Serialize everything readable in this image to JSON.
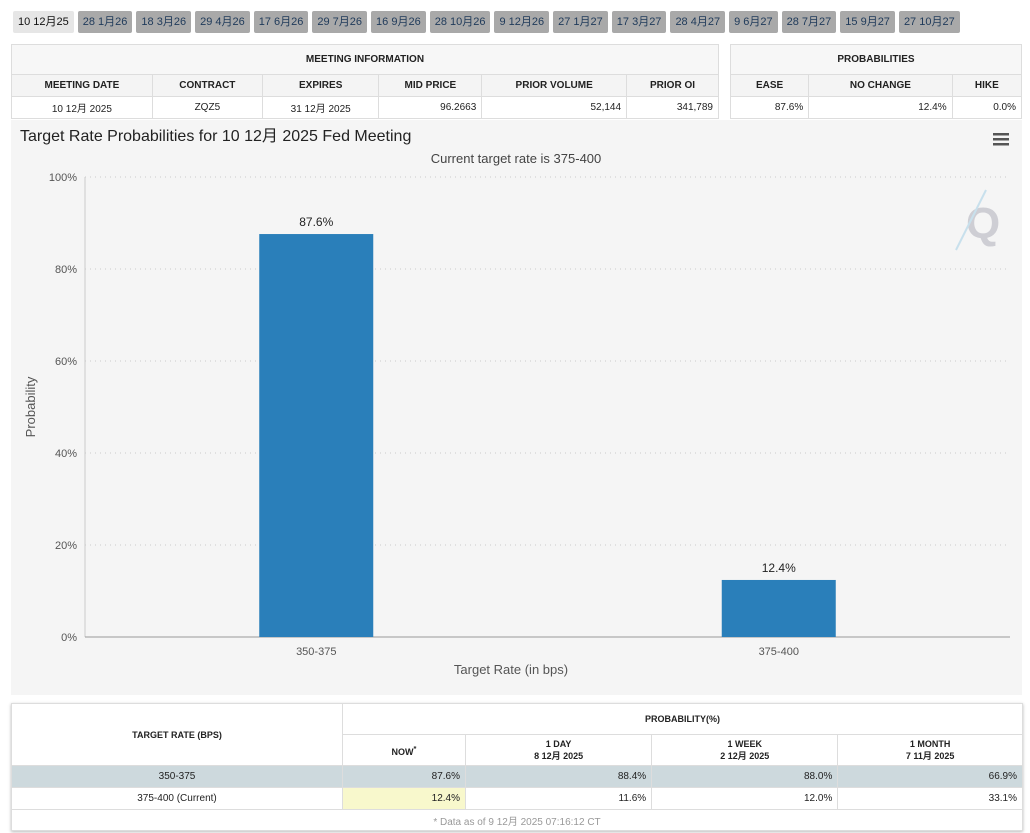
{
  "tabs": [
    "10 12月25",
    "28 1月26",
    "18 3月26",
    "29 4月26",
    "17 6月26",
    "29 7月26",
    "16 9月26",
    "28 10月26",
    "9 12月26",
    "27 1月27",
    "17 3月27",
    "28 4月27",
    "9 6月27",
    "28 7月27",
    "15 9月27",
    "27 10月27"
  ],
  "meeting": {
    "title": "MEETING INFORMATION",
    "headers": [
      "MEETING DATE",
      "CONTRACT",
      "EXPIRES",
      "MID PRICE",
      "PRIOR VOLUME",
      "PRIOR OI"
    ],
    "values": [
      "10 12月 2025",
      "ZQZ5",
      "31 12月 2025",
      "96.2663",
      "52,144",
      "341,789"
    ]
  },
  "probabilities": {
    "title": "PROBABILITIES",
    "headers": [
      "EASE",
      "NO CHANGE",
      "HIKE"
    ],
    "values": [
      "87.6%",
      "12.4%",
      "0.0%"
    ]
  },
  "chart_data": {
    "type": "bar",
    "title": "Target Rate Probabilities for 10 12月 2025 Fed Meeting",
    "subtitle": "Current target rate is 375-400",
    "xlabel": "Target Rate (in bps)",
    "ylabel": "Probability",
    "categories": [
      "350-375",
      "375-400"
    ],
    "values": [
      87.6,
      12.4
    ],
    "data_labels": [
      "87.6%",
      "12.4%"
    ],
    "ylim": [
      0,
      100
    ],
    "yticks": [
      "0%",
      "20%",
      "40%",
      "60%",
      "80%",
      "100%"
    ],
    "grid": true,
    "bar_color": "#2a7fba"
  },
  "bottom": {
    "col1": "TARGET RATE (BPS)",
    "prob": "PROBABILITY(%)",
    "now": "NOW",
    "star": "*",
    "cols": [
      [
        "1 DAY",
        "8 12月 2025"
      ],
      [
        "1 WEEK",
        "2 12月 2025"
      ],
      [
        "1 MONTH",
        "7 11月 2025"
      ]
    ],
    "rows": [
      [
        "350-375",
        "87.6%",
        "88.4%",
        "88.0%",
        "66.9%"
      ],
      [
        "375-400 (Current)",
        "12.4%",
        "11.6%",
        "12.0%",
        "33.1%"
      ]
    ],
    "footnote": "* Data as of 9 12月 2025 07:16:12 CT"
  }
}
